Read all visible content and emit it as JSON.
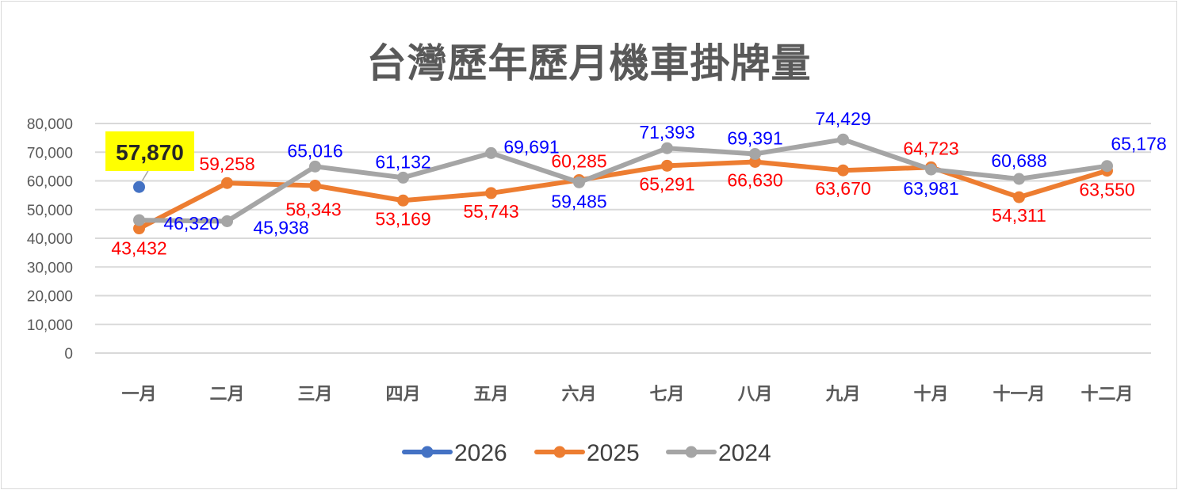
{
  "title": "台灣歷年歷月機車掛牌量",
  "colors": {
    "2026": "#4472c4",
    "2025": "#ed7d31",
    "2024": "#a5a5a5",
    "label_2025": "#ff0000",
    "label_2024": "#0000ff",
    "highlight_bg": "#ffff00",
    "gridline": "#d9d9d9",
    "axis_text": "#595959"
  },
  "chart_data": {
    "type": "line",
    "title": "台灣歷年歷月機車掛牌量",
    "xlabel": "",
    "ylabel": "",
    "categories": [
      "一月",
      "二月",
      "三月",
      "四月",
      "五月",
      "六月",
      "七月",
      "八月",
      "九月",
      "十月",
      "十一月",
      "十二月"
    ],
    "y_ticks": [
      "0",
      "10,000",
      "20,000",
      "30,000",
      "40,000",
      "50,000",
      "60,000",
      "70,000",
      "80,000"
    ],
    "ylim": [
      0,
      80000
    ],
    "grid": true,
    "legend_position": "bottom",
    "series": [
      {
        "name": "2026",
        "values": [
          57870,
          null,
          null,
          null,
          null,
          null,
          null,
          null,
          null,
          null,
          null,
          null
        ],
        "labels": [
          "57,870"
        ]
      },
      {
        "name": "2025",
        "values": [
          43432,
          59258,
          58343,
          53169,
          55743,
          60285,
          65291,
          66630,
          63670,
          64723,
          54311,
          63550
        ],
        "labels": [
          "43,432",
          "59,258",
          "58,343",
          "53,169",
          "55,743",
          "60,285",
          "65,291",
          "66,630",
          "63,670",
          "64,723",
          "54,311",
          "63,550"
        ]
      },
      {
        "name": "2024",
        "values": [
          46320,
          45938,
          65016,
          61132,
          69691,
          59485,
          71393,
          69391,
          74429,
          63981,
          60688,
          65178
        ],
        "labels": [
          "46,320",
          "45,938",
          "65,016",
          "61,132",
          "69,691",
          "59,485",
          "71,393",
          "69,391",
          "74,429",
          "63,981",
          "60,688",
          "65,178"
        ]
      }
    ]
  },
  "legend": [
    {
      "label": "2026"
    },
    {
      "label": "2025"
    },
    {
      "label": "2024"
    }
  ]
}
